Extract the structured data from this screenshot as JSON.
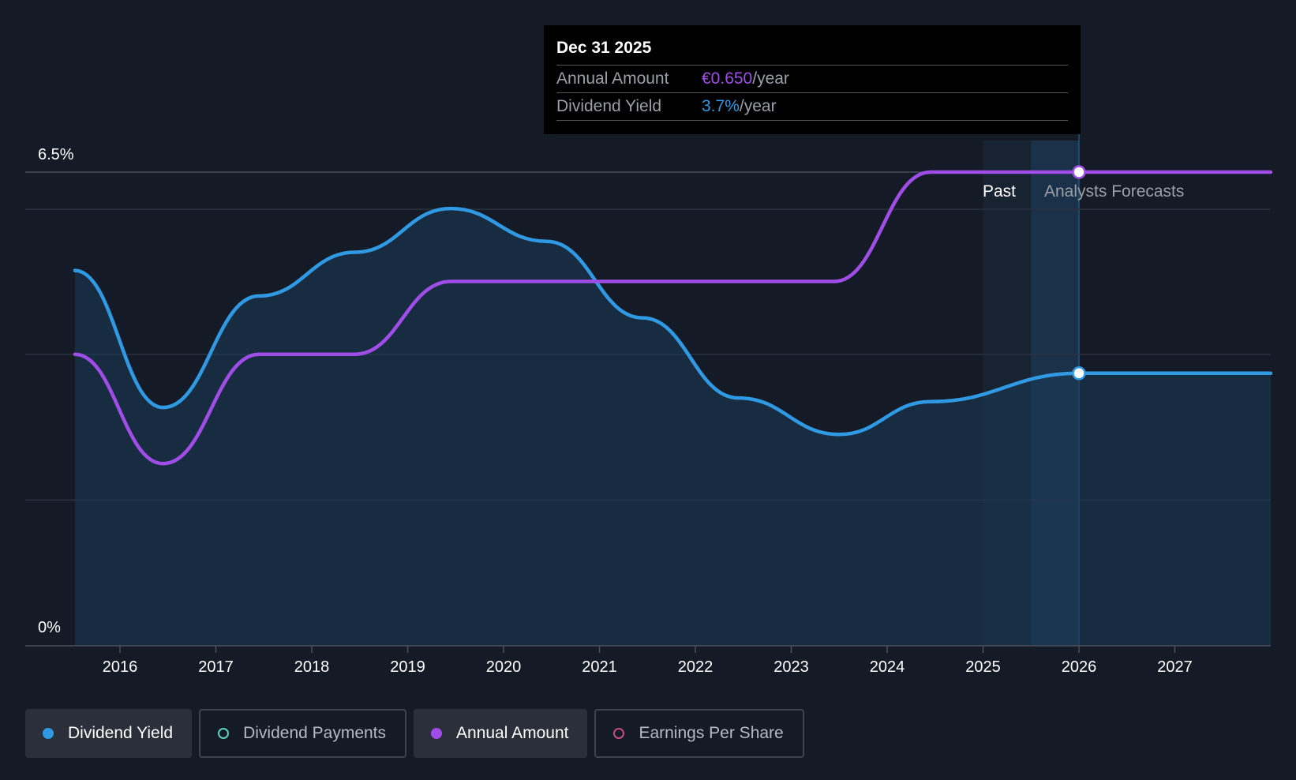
{
  "tooltip": {
    "date": "Dec 31 2025",
    "annual_label": "Annual Amount",
    "annual_value": "€0.650",
    "annual_unit": "/year",
    "yield_label": "Dividend Yield",
    "yield_value": "3.7%",
    "yield_unit": "/year"
  },
  "legend": [
    {
      "label": "Dividend Yield",
      "color": "#2f9ae3",
      "active": true,
      "marker": "filled-dot"
    },
    {
      "label": "Dividend Payments",
      "color": "#5ed0c0",
      "active": false,
      "marker": "ring"
    },
    {
      "label": "Annual Amount",
      "color": "#a04de8",
      "active": true,
      "marker": "filled-dot"
    },
    {
      "label": "Earnings Per Share",
      "color": "#c04d80",
      "active": false,
      "marker": "ring"
    }
  ],
  "chart_data": {
    "type": "line",
    "x_ticks": [
      "2016",
      "2017",
      "2018",
      "2019",
      "2020",
      "2021",
      "2022",
      "2023",
      "2024",
      "2025",
      "2026",
      "2027"
    ],
    "y_tick_labels": [
      "0%",
      "6.5%"
    ],
    "ylim": [
      0,
      6.5
    ],
    "xlim": [
      2015.5,
      2028.0
    ],
    "grid": true,
    "past_label": "Past",
    "forecast_label": "Analysts Forecasts",
    "forecast_start": 2025.0,
    "highlight_x": 2026.0,
    "series": [
      {
        "name": "Dividend Yield",
        "color": "#2f9ae3",
        "area": true,
        "points": [
          [
            2015.53,
            5.15
          ],
          [
            2016.45,
            3.27
          ],
          [
            2017.45,
            4.8
          ],
          [
            2018.45,
            5.4
          ],
          [
            2019.45,
            6.0
          ],
          [
            2020.45,
            5.55
          ],
          [
            2021.45,
            4.5
          ],
          [
            2022.45,
            3.4
          ],
          [
            2023.5,
            2.9
          ],
          [
            2024.45,
            3.35
          ],
          [
            2026.0,
            3.74
          ],
          [
            2028.0,
            3.74
          ]
        ]
      },
      {
        "name": "Annual Amount",
        "color": "#a04de8",
        "area": false,
        "points": [
          [
            2015.53,
            4.0
          ],
          [
            2016.45,
            2.5
          ],
          [
            2017.45,
            4.0
          ],
          [
            2018.45,
            4.0
          ],
          [
            2019.45,
            5.0
          ],
          [
            2020.45,
            5.0
          ],
          [
            2023.45,
            5.0
          ],
          [
            2024.45,
            6.5
          ],
          [
            2028.0,
            6.5
          ]
        ]
      }
    ]
  }
}
